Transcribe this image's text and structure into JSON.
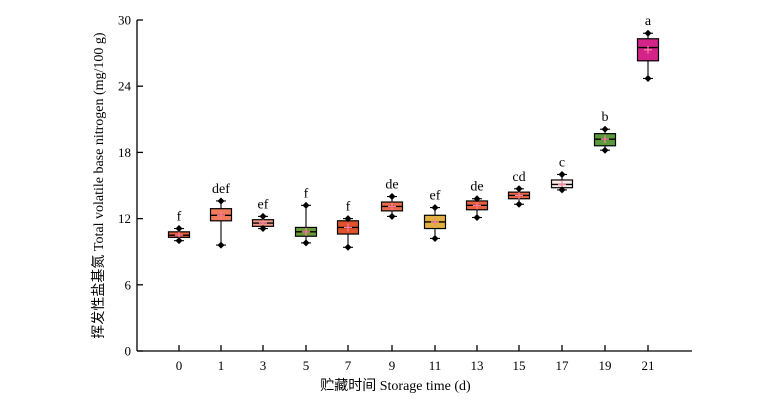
{
  "chart_data": {
    "type": "box",
    "xlabel": "贮藏时间 Storage time (d)",
    "ylabel": "挥发性盐基氮 Total volatile base nitrogen (mg/100 g)",
    "ylim": [
      0,
      30
    ],
    "yticks": [
      0,
      6,
      12,
      18,
      24,
      30
    ],
    "grid": false,
    "categories": [
      "0",
      "1",
      "3",
      "5",
      "7",
      "9",
      "11",
      "13",
      "15",
      "17",
      "19",
      "21"
    ],
    "boxes": [
      {
        "x": "0",
        "min": 10.0,
        "q1": 10.3,
        "median": 10.5,
        "mean": 10.5,
        "q3": 10.8,
        "max": 11.1,
        "outliers": [],
        "label": "f",
        "color": "#e8603c"
      },
      {
        "x": "1",
        "min": 9.6,
        "q1": 11.8,
        "median": 12.3,
        "mean": 12.3,
        "q3": 12.9,
        "max": 13.6,
        "outliers": [],
        "label": "def",
        "color": "#f07a5a"
      },
      {
        "x": "3",
        "min": 11.1,
        "q1": 11.3,
        "median": 11.6,
        "mean": 11.6,
        "q3": 11.9,
        "max": 12.2,
        "outliers": [],
        "label": "ef",
        "color": "#f39a8a"
      },
      {
        "x": "5",
        "min": 9.8,
        "q1": 10.4,
        "median": 10.8,
        "mean": 10.8,
        "q3": 11.2,
        "max": 13.2,
        "outliers": [],
        "label": "f",
        "color": "#6a9a3a"
      },
      {
        "x": "7",
        "min": 9.4,
        "q1": 10.6,
        "median": 11.2,
        "mean": 11.2,
        "q3": 11.8,
        "max": 12.0,
        "outliers": [],
        "label": "f",
        "color": "#e0522c"
      },
      {
        "x": "9",
        "min": 12.2,
        "q1": 12.7,
        "median": 13.1,
        "mean": 13.1,
        "q3": 13.5,
        "max": 14.0,
        "outliers": [],
        "label": "de",
        "color": "#ec6a4a"
      },
      {
        "x": "11",
        "min": 10.2,
        "q1": 11.1,
        "median": 11.7,
        "mean": 11.7,
        "q3": 12.3,
        "max": 13.0,
        "outliers": [],
        "label": "ef",
        "color": "#e0b040"
      },
      {
        "x": "13",
        "min": 12.1,
        "q1": 12.8,
        "median": 13.2,
        "mean": 13.2,
        "q3": 13.6,
        "max": 13.8,
        "outliers": [],
        "label": "de",
        "color": "#e86040"
      },
      {
        "x": "15",
        "min": 13.3,
        "q1": 13.8,
        "median": 14.1,
        "mean": 14.1,
        "q3": 14.4,
        "max": 14.7,
        "outliers": [],
        "label": "cd",
        "color": "#ec6a48"
      },
      {
        "x": "17",
        "min": 14.6,
        "q1": 14.8,
        "median": 15.1,
        "mean": 15.1,
        "q3": 15.5,
        "max": 16.0,
        "outliers": [],
        "label": "c",
        "color": "#f9ece8"
      },
      {
        "x": "19",
        "min": 18.2,
        "q1": 18.6,
        "median": 19.2,
        "mean": 19.2,
        "q3": 19.7,
        "max": 20.1,
        "outliers": [],
        "label": "b",
        "color": "#5a9a3a"
      },
      {
        "x": "21",
        "min": 24.7,
        "q1": 26.3,
        "median": 27.5,
        "mean": 27.3,
        "q3": 28.3,
        "max": 28.8,
        "outliers": [],
        "label": "a",
        "color": "#d4248a"
      }
    ]
  }
}
